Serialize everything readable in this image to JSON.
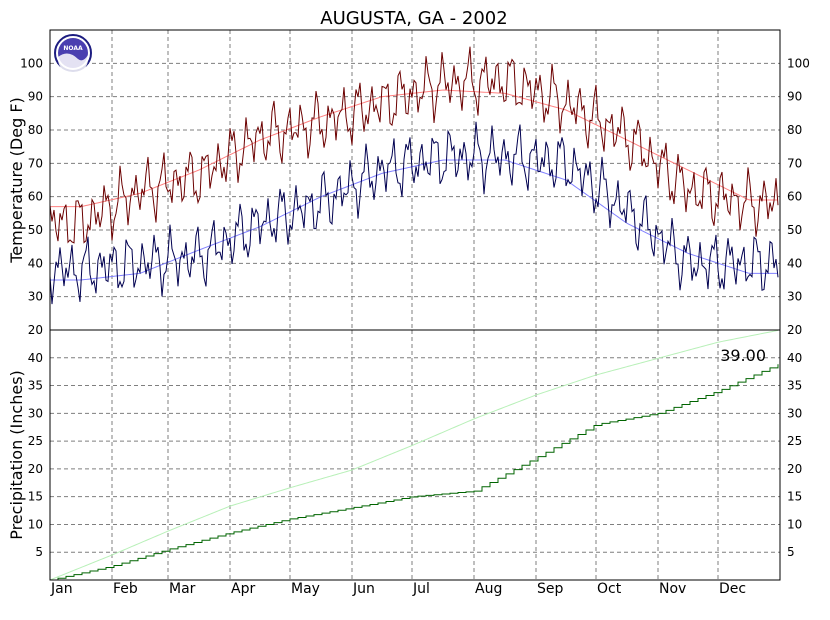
{
  "chart_data": {
    "type": "line",
    "title": "AUGUSTA, GA - 2002",
    "x_categories": [
      "Jan",
      "Feb",
      "Mar",
      "Apr",
      "May",
      "Jun",
      "Jul",
      "Aug",
      "Sep",
      "Oct",
      "Nov",
      "Dec"
    ],
    "grid": true,
    "logo": "NOAA",
    "colors": {
      "observed_high": "#6b0000",
      "observed_low": "#000050",
      "normal_high": "#ff8080",
      "normal_low": "#8080ff",
      "observed_precip": "#006400",
      "normal_precip": "#b8f0b8"
    },
    "panels": [
      {
        "id": "temperature",
        "ylabel": "Temperature (Deg F)",
        "ylim": [
          20,
          110
        ],
        "yticks": [
          20,
          30,
          40,
          50,
          60,
          70,
          80,
          90,
          100
        ],
        "series_monthly": {
          "observed_high_mid": [
            52,
            62,
            66,
            78,
            82,
            88,
            94,
            95,
            88,
            78,
            62,
            58
          ],
          "observed_low_mid": [
            38,
            40,
            42,
            52,
            58,
            68,
            72,
            72,
            70,
            56,
            40,
            40
          ],
          "normal_high_mid": [
            57,
            61,
            68,
            77,
            84,
            90,
            92,
            91,
            86,
            77,
            68,
            59
          ],
          "normal_low_mid": [
            35,
            37,
            44,
            51,
            60,
            67,
            71,
            71,
            65,
            52,
            43,
            37
          ]
        }
      },
      {
        "id": "precipitation",
        "ylabel": "Precipitation (Inches)",
        "ylim": [
          0,
          45
        ],
        "yticks": [
          5,
          10,
          15,
          20,
          25,
          30,
          35,
          40
        ],
        "cumulative_observed_monthly_end": [
          2.5,
          5.5,
          8.5,
          11.0,
          13.0,
          15.0,
          16.0,
          22.0,
          28.0,
          30.0,
          34.0,
          39.0
        ],
        "cumulative_normal_monthly_end": [
          4.5,
          8.8,
          13.3,
          16.6,
          19.8,
          24.2,
          29.0,
          33.3,
          36.9,
          39.9,
          42.8,
          45.0
        ],
        "annotation": "39.00"
      }
    ]
  }
}
